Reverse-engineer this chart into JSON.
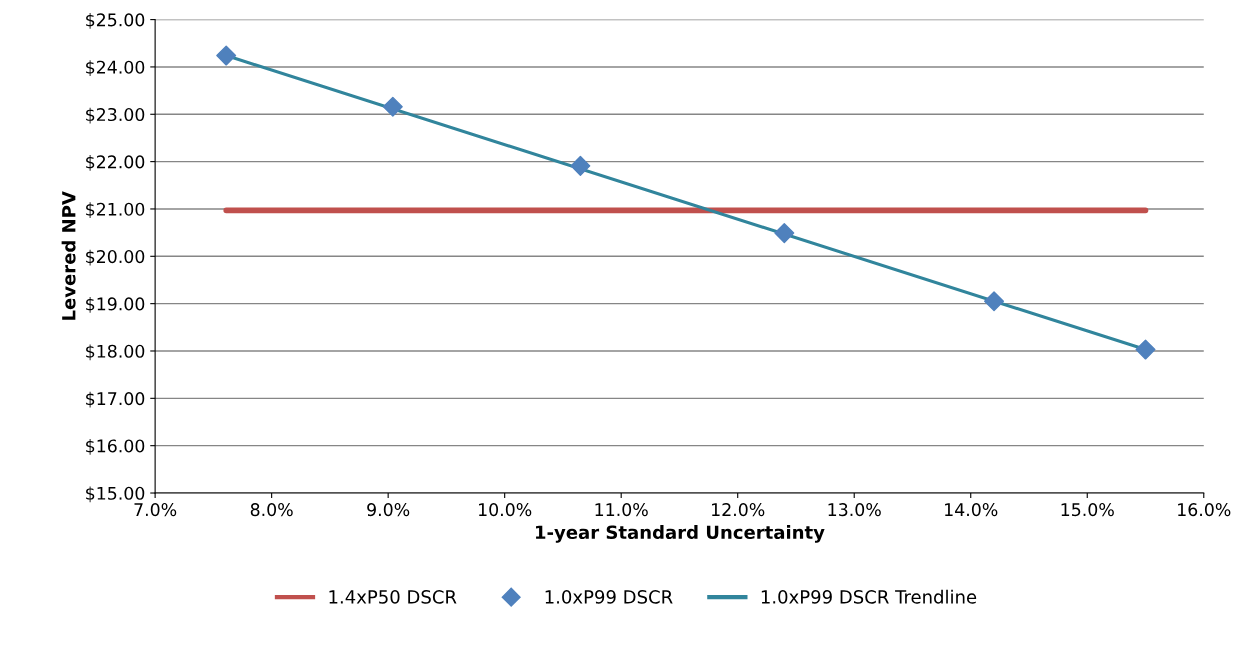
{
  "chart_data": {
    "type": "scatter",
    "xlabel": "1-year Standard Uncertainty",
    "ylabel": "Levered NPV",
    "xlim": [
      7,
      16
    ],
    "ylim": [
      15,
      25
    ],
    "xticks": [
      {
        "value": 7,
        "label": "7.0%"
      },
      {
        "value": 8,
        "label": "8.0%"
      },
      {
        "value": 9,
        "label": "9.0%"
      },
      {
        "value": 10,
        "label": "10.0%"
      },
      {
        "value": 11,
        "label": "11.0%"
      },
      {
        "value": 12,
        "label": "12.0%"
      },
      {
        "value": 13,
        "label": "13.0%"
      },
      {
        "value": 14,
        "label": "14.0%"
      },
      {
        "value": 15,
        "label": "15.0%"
      },
      {
        "value": 16,
        "label": "16.0%"
      }
    ],
    "yticks": [
      {
        "value": 15,
        "label": "$15.00"
      },
      {
        "value": 16,
        "label": "$16.00"
      },
      {
        "value": 17,
        "label": "$17.00"
      },
      {
        "value": 18,
        "label": "$18.00"
      },
      {
        "value": 19,
        "label": "$19.00"
      },
      {
        "value": 20,
        "label": "$20.00"
      },
      {
        "value": 21,
        "label": "$21.00"
      },
      {
        "value": 22,
        "label": "$22.00"
      },
      {
        "value": 23,
        "label": "$23.00"
      },
      {
        "value": 24,
        "label": "$24.00"
      },
      {
        "value": 25,
        "label": "$25.00"
      }
    ],
    "grid": "y",
    "legend": "bottom",
    "series": [
      {
        "name": "1.4xP50 DSCR",
        "type": "line",
        "color": "#c0504d",
        "marker": "none",
        "x": [
          7.61,
          15.5
        ],
        "values": [
          20.97,
          20.97
        ]
      },
      {
        "name": "1.0xP99 DSCR",
        "color": "#4f81bd",
        "marker": "diamond",
        "x": [
          7.61,
          9.04,
          10.65,
          12.4,
          14.2,
          15.5
        ],
        "values": [
          24.24,
          23.16,
          21.91,
          20.49,
          19.05,
          18.03
        ]
      },
      {
        "name": "1.0xP99 DSCR Trendline",
        "type": "line",
        "color": "#31859c",
        "marker": "none",
        "x": [
          7.61,
          15.5
        ],
        "values": [
          24.24,
          18.03
        ]
      }
    ]
  }
}
